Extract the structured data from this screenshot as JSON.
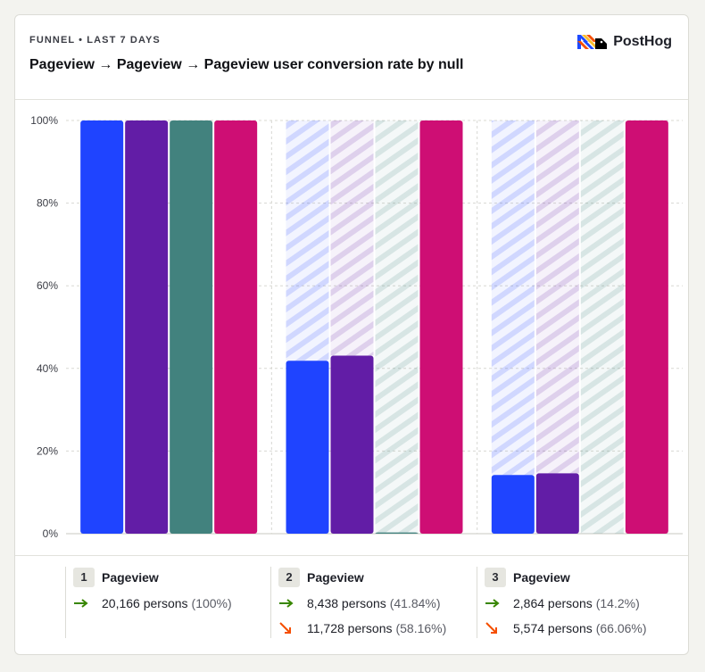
{
  "header": {
    "eyebrow": "FUNNEL • LAST 7 DAYS",
    "title": "Pageview → Pageview → Pageview user conversion rate by null",
    "logo_text": "PostHog",
    "logo_icon": "posthog-hedgehog-logo-icon"
  },
  "colors": {
    "series": [
      "#1f44ff",
      "#621da6",
      "#42827e",
      "#ce0e74"
    ],
    "grid": "#d8d8d2",
    "converted": "#388600",
    "dropped": "#f54e00"
  },
  "chart_data": {
    "type": "bar",
    "categories": [
      "Pageview",
      "Pageview",
      "Pageview"
    ],
    "series": [
      {
        "values": [
          100,
          41.84,
          14.2
        ]
      },
      {
        "values": [
          100,
          43.1,
          14.6
        ]
      },
      {
        "values": [
          100,
          0.3,
          0
        ]
      },
      {
        "values": [
          100,
          100,
          100
        ]
      }
    ],
    "ylim": [
      0,
      100
    ],
    "yticks": [
      "0%",
      "20%",
      "40%",
      "60%",
      "80%",
      "100%"
    ],
    "ytick_values": [
      0,
      20,
      40,
      60,
      80,
      100
    ],
    "grid": true,
    "unconverted_remainder": "hatched"
  },
  "legend": {
    "steps": [
      {
        "number": "1",
        "name": "Pageview",
        "converted_count": "20,166 persons",
        "converted_pct": "(100%)",
        "dropped_count": "",
        "dropped_pct": ""
      },
      {
        "number": "2",
        "name": "Pageview",
        "converted_count": "8,438 persons",
        "converted_pct": "(41.84%)",
        "dropped_count": "11,728 persons",
        "dropped_pct": "(58.16%)"
      },
      {
        "number": "3",
        "name": "Pageview",
        "converted_count": "2,864 persons",
        "converted_pct": "(14.2%)",
        "dropped_count": "5,574 persons",
        "dropped_pct": "(66.06%)"
      }
    ],
    "converted_icon": "arrow-right-icon",
    "dropped_icon": "arrow-down-right-icon"
  }
}
